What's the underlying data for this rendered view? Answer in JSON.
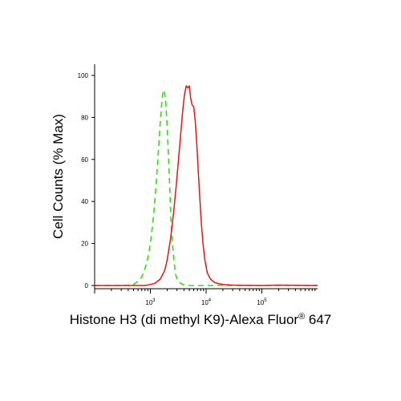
{
  "chart_data": {
    "type": "line",
    "xlabel": "Histone H3 (di methyl K9)-Alexa Fluor",
    "xlabel_superscript": "®",
    "xlabel_suffix": " 647",
    "ylabel": "Cell Counts (% Max)",
    "x_scale": "log",
    "xlim": [
      100,
      1000000
    ],
    "ylim": [
      0,
      100
    ],
    "y_ticks": [
      {
        "value": 0,
        "label": "0"
      },
      {
        "value": 20,
        "label": "20"
      },
      {
        "value": 40,
        "label": "40"
      },
      {
        "value": 60,
        "label": "60"
      },
      {
        "value": 80,
        "label": "80"
      },
      {
        "value": 100,
        "label": "100"
      }
    ],
    "x_ticks": [
      {
        "value": 1000,
        "base": "10",
        "exp": "3"
      },
      {
        "value": 10000,
        "base": "10",
        "exp": "4"
      },
      {
        "value": 100000,
        "base": "10",
        "exp": "5"
      }
    ],
    "grid": false,
    "legend": "none",
    "series": [
      {
        "style": "dashed",
        "color": "#33dd11",
        "x": [
          100,
          350,
          500,
          600,
          700,
          800,
          900,
          1000,
          1100,
          1200,
          1300,
          1400,
          1500,
          1600,
          1700,
          1800,
          1900,
          2000,
          2100,
          2200,
          2300,
          2400,
          2600,
          2800,
          3000,
          3500,
          4000,
          5000,
          8000,
          20000,
          1000000
        ],
        "y": [
          0,
          0,
          0.5,
          2,
          4,
          8,
          13,
          20,
          29,
          40,
          52,
          65,
          77,
          87,
          93,
          92,
          86,
          76,
          63,
          50,
          37,
          26,
          14,
          6,
          3,
          1,
          0.3,
          0,
          0,
          0,
          0
        ]
      },
      {
        "style": "solid",
        "color": "#ee1111",
        "x": [
          100,
          800,
          1000,
          1200,
          1500,
          1800,
          2000,
          2300,
          2600,
          2900,
          3200,
          3500,
          3800,
          4100,
          4400,
          4700,
          5000,
          5300,
          5600,
          6000,
          6400,
          6800,
          7200,
          7700,
          8200,
          8800,
          9500,
          10500,
          12000,
          14000,
          17000,
          22000,
          30000,
          50000,
          100000,
          200000,
          1000000
        ],
        "y": [
          0,
          0,
          0.5,
          1,
          3,
          7,
          12,
          22,
          34,
          47,
          60,
          72,
          83,
          91,
          95,
          94,
          95,
          89,
          86,
          85,
          78,
          67,
          55,
          42,
          30,
          20,
          12,
          6,
          3,
          1.5,
          0.8,
          0.4,
          0.2,
          0.1,
          0,
          0.2,
          0
        ]
      }
    ]
  }
}
